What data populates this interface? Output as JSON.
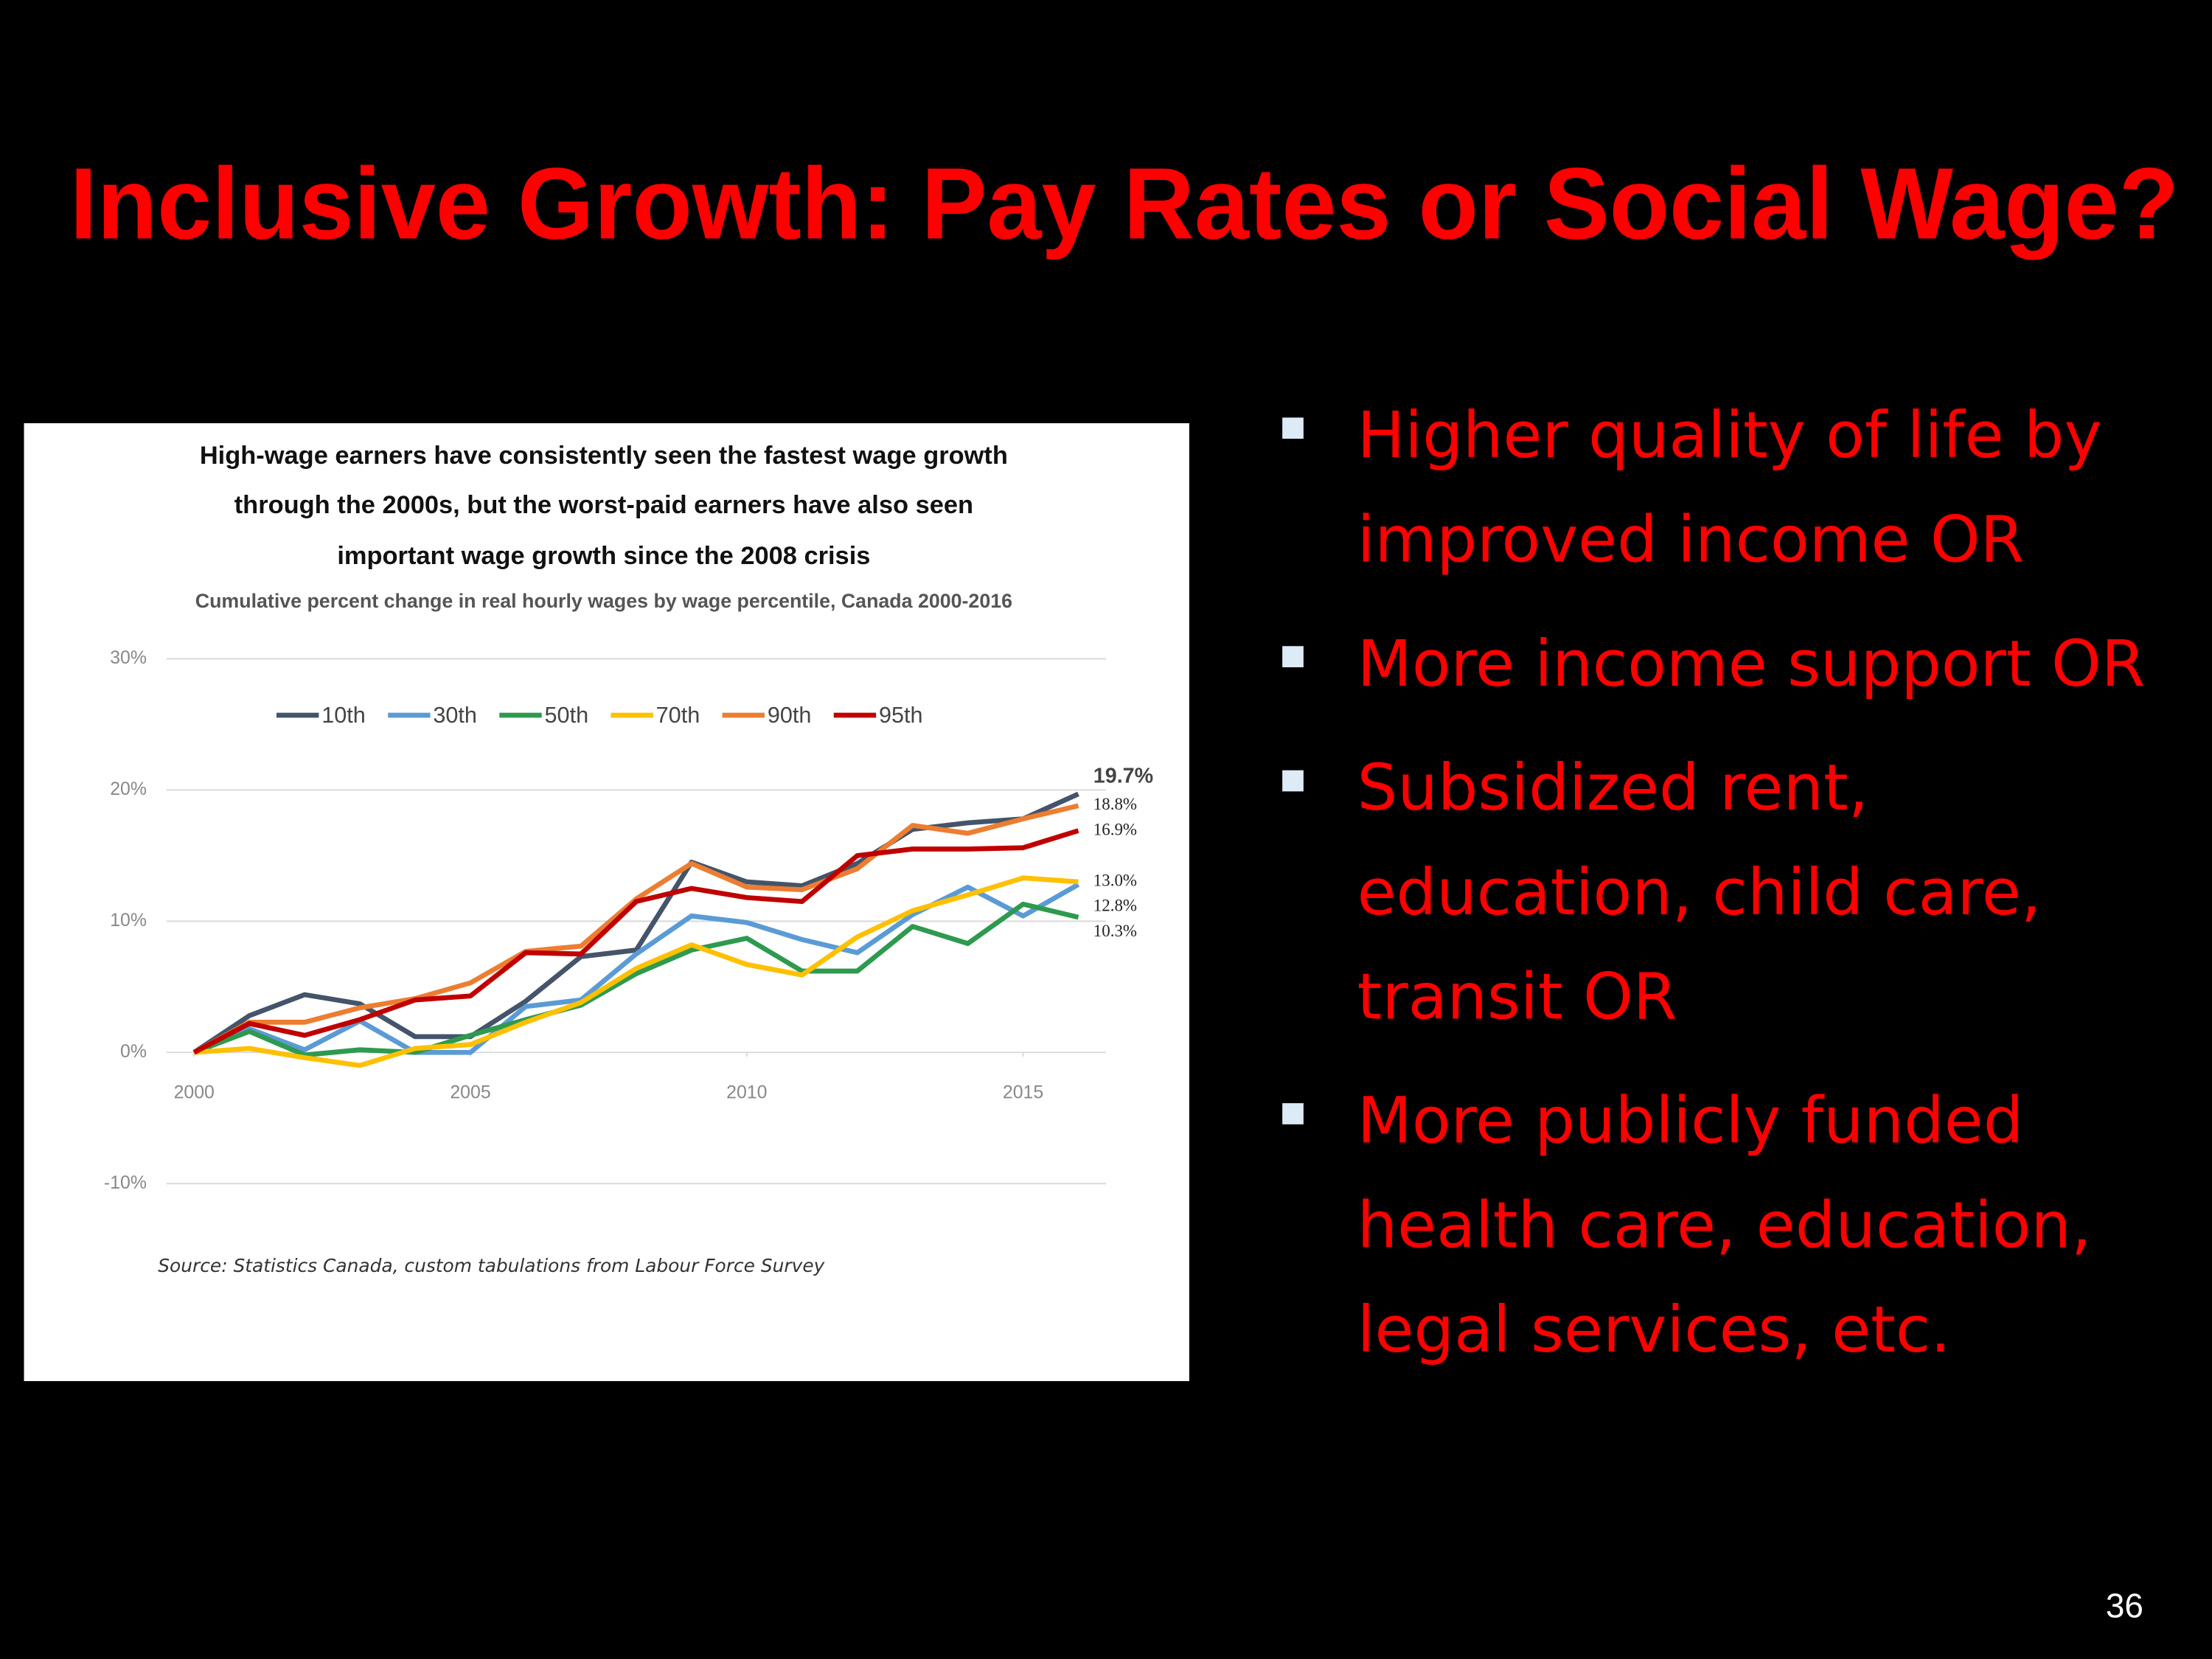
{
  "slide": {
    "title": "Inclusive Growth: Pay Rates or Social Wage?",
    "bullets": [
      "Higher quality of life by improved income OR",
      "More income support OR",
      "Subsidized rent, education, child care, transit OR",
      "More publicly funded health care, education, legal services, etc."
    ],
    "page_number": "36"
  },
  "chart_data": {
    "type": "line",
    "title": [
      "High-wage earners have consistently seen the fastest wage growth",
      "through the 2000s, but the worst-paid earners have also seen",
      "important wage growth since the 2008 crisis"
    ],
    "subtitle": "Cumulative percent change in real hourly wages by wage percentile, Canada  2000-2016",
    "source": "Source: Statistics Canada,  custom tabulations  from Labour Force Survey",
    "x": [
      2000,
      2001,
      2002,
      2003,
      2004,
      2005,
      2006,
      2007,
      2008,
      2009,
      2010,
      2011,
      2012,
      2013,
      2014,
      2015,
      2016
    ],
    "xlim": [
      1999.5,
      2016.5
    ],
    "xticks": [
      2000,
      2005,
      2010,
      2015
    ],
    "ylim": [
      -10,
      30
    ],
    "yticks": [
      {
        "value": -10,
        "label": "-10%"
      },
      {
        "value": 0,
        "label": "0%"
      },
      {
        "value": 10,
        "label": "10%"
      },
      {
        "value": 20,
        "label": "20%"
      },
      {
        "value": 30,
        "label": "30%"
      }
    ],
    "grid": true,
    "legend": "top",
    "series": [
      {
        "name": "10th",
        "color": "#44546a",
        "values": [
          0,
          2.8,
          4.4,
          3.7,
          1.2,
          1.2,
          3.9,
          7.3,
          7.8,
          14.5,
          13.0,
          12.7,
          14.4,
          17.0,
          17.5,
          17.8,
          19.7
        ],
        "value_labels": [
          null,
          null,
          null,
          null,
          null,
          null,
          null,
          null,
          null,
          null,
          null,
          null,
          null,
          null,
          null,
          null,
          "19.7%"
        ]
      },
      {
        "name": "30th",
        "color": "#5b9bd5",
        "values": [
          0,
          1.8,
          0.2,
          2.4,
          0,
          0,
          3.5,
          4.0,
          7.5,
          10.4,
          9.9,
          8.6,
          7.6,
          10.5,
          12.6,
          10.4,
          12.8
        ],
        "value_labels": [
          null,
          null,
          null,
          null,
          null,
          null,
          null,
          null,
          null,
          null,
          null,
          null,
          null,
          null,
          null,
          null,
          "12.8%"
        ]
      },
      {
        "name": "50th",
        "color": "#2e9a4f",
        "values": [
          0,
          1.6,
          -0.2,
          0.2,
          0,
          1.3,
          2.5,
          3.6,
          6.0,
          7.8,
          8.7,
          6.2,
          6.2,
          9.6,
          8.3,
          11.3,
          10.3
        ],
        "value_labels": [
          null,
          null,
          null,
          null,
          null,
          null,
          null,
          null,
          null,
          null,
          null,
          null,
          null,
          null,
          null,
          null,
          "10.3%"
        ]
      },
      {
        "name": "70th",
        "color": "#ffc000",
        "values": [
          0,
          0.3,
          -0.4,
          -1.0,
          0.3,
          0.6,
          2.3,
          3.8,
          6.4,
          8.2,
          6.7,
          5.9,
          8.8,
          10.8,
          12.0,
          13.3,
          13.0
        ],
        "value_labels": [
          null,
          null,
          null,
          null,
          null,
          null,
          null,
          null,
          null,
          null,
          null,
          null,
          null,
          null,
          null,
          null,
          "13.0%"
        ]
      },
      {
        "name": "90th",
        "color": "#ed7d31",
        "values": [
          0,
          2.3,
          2.3,
          3.4,
          4.1,
          5.3,
          7.7,
          8.1,
          11.7,
          14.4,
          12.6,
          12.4,
          14.0,
          17.3,
          16.7,
          17.8,
          18.8
        ],
        "value_labels": [
          null,
          null,
          null,
          null,
          null,
          null,
          null,
          null,
          null,
          null,
          null,
          null,
          null,
          null,
          null,
          null,
          "18.8%"
        ]
      },
      {
        "name": "95th",
        "color": "#c00000",
        "values": [
          0,
          2.2,
          1.3,
          2.5,
          4.0,
          4.3,
          7.6,
          7.5,
          11.5,
          12.5,
          11.8,
          11.5,
          15.0,
          15.5,
          15.5,
          15.6,
          16.9
        ],
        "value_labels": [
          null,
          null,
          null,
          null,
          null,
          null,
          null,
          null,
          null,
          null,
          null,
          null,
          null,
          null,
          null,
          null,
          "16.9%"
        ]
      }
    ]
  }
}
